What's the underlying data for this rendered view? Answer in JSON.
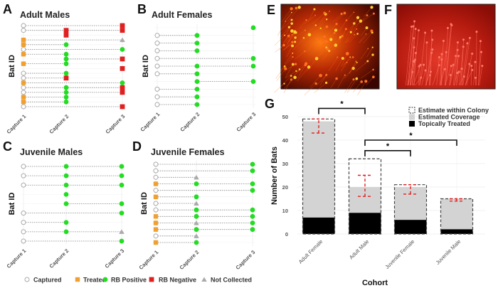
{
  "figure": {
    "legend": {
      "items": [
        {
          "code": "C",
          "label": "Captured",
          "icon": "open-circle-icon",
          "color": "#aaaaaa"
        },
        {
          "code": "T",
          "label": "Treated",
          "icon": "square-icon",
          "color": "#f0a030"
        },
        {
          "code": "P",
          "label": "RB Positive",
          "icon": "filled-circle-icon",
          "color": "#22dd22"
        },
        {
          "code": "N",
          "label": "RB Negative",
          "icon": "square-icon",
          "color": "#e02020"
        },
        {
          "code": "X",
          "label": "Not Collected",
          "icon": "triangle-icon",
          "color": "#aaaaaa"
        }
      ]
    },
    "capture_labels": [
      "Capture 1",
      "Capture 2",
      "Capture 3"
    ],
    "y_label": "Bat ID",
    "panels": [
      {
        "letter": "A",
        "title": "Adult Males",
        "rows": [
          [
            "C",
            "",
            "N"
          ],
          [
            "C",
            "N",
            "N"
          ],
          [
            "",
            "N",
            ""
          ],
          [
            "T",
            "",
            "X"
          ],
          [
            "T",
            "P",
            ""
          ],
          [
            "C",
            "",
            "P"
          ],
          [
            "T",
            "P",
            ""
          ],
          [
            "",
            "P",
            "N"
          ],
          [
            "T",
            "P",
            ""
          ],
          [
            "",
            "",
            "N"
          ],
          [
            "C",
            "P",
            ""
          ],
          [
            "C",
            "N",
            ""
          ],
          [
            "T",
            "",
            "P"
          ],
          [
            "C",
            "P",
            "N"
          ],
          [
            "C",
            "P",
            "N"
          ],
          [
            "T",
            "P",
            ""
          ],
          [
            "T",
            "P",
            ""
          ],
          [
            "C",
            "",
            "N"
          ]
        ]
      },
      {
        "letter": "B",
        "title": "Adult Females",
        "rows": [
          [
            "",
            "",
            "P"
          ],
          [
            "C",
            "P",
            ""
          ],
          [
            "C",
            "P",
            ""
          ],
          [
            "C",
            "P",
            ""
          ],
          [
            "C",
            "",
            "P"
          ],
          [
            "C",
            "P",
            "P"
          ],
          [
            "C",
            "P",
            ""
          ],
          [
            "",
            "P",
            "P"
          ],
          [
            "C",
            "P",
            ""
          ],
          [
            "C",
            "P",
            ""
          ],
          [
            "C",
            "P",
            ""
          ]
        ]
      },
      {
        "letter": "C",
        "title": "Juvenile Males",
        "rows": [
          [
            "C",
            "P",
            "P"
          ],
          [
            "C",
            "P",
            "P"
          ],
          [
            "C",
            "P",
            "P"
          ],
          [
            "",
            "P",
            ""
          ],
          [
            "",
            "P",
            "P"
          ],
          [
            "C",
            "",
            "P"
          ],
          [
            "C",
            "P",
            ""
          ],
          [
            "C",
            "P",
            "X"
          ],
          [
            "C",
            "",
            "P"
          ]
        ]
      },
      {
        "letter": "D",
        "title": "Juvenile Females",
        "rows": [
          [
            "C",
            "",
            "P"
          ],
          [
            "C",
            "",
            "P"
          ],
          [
            "C",
            "X",
            ""
          ],
          [
            "T",
            "P",
            "P"
          ],
          [
            "C",
            "",
            "P"
          ],
          [
            "T",
            "P",
            ""
          ],
          [
            "C",
            "X",
            ""
          ],
          [
            "C",
            "P",
            "P"
          ],
          [
            "T",
            "P",
            "P"
          ],
          [
            "T",
            "X",
            "P"
          ],
          [
            "T",
            "P",
            "P"
          ],
          [
            "C",
            "X",
            ""
          ],
          [
            "T",
            "P",
            ""
          ]
        ]
      }
    ],
    "images": [
      {
        "letter": "E",
        "description_icon": "fluorescence-micrograph-icon"
      },
      {
        "letter": "F",
        "description_icon": "fluorescence-micrograph-icon"
      }
    ]
  },
  "chart_data": {
    "type": "bar",
    "panel_letter": "G",
    "categories": [
      "Adult Female",
      "Adult Male",
      "Juvenile Female",
      "Juvenile Male"
    ],
    "series": [
      {
        "name": "Estimate within Colony",
        "values": [
          49,
          32,
          21,
          15
        ],
        "style": "dashed-outline"
      },
      {
        "name": "Estimated Coverage",
        "values": [
          48,
          20,
          20,
          15
        ],
        "color": "#d3d3d3"
      },
      {
        "name": "Topically Treated",
        "values": [
          7,
          9,
          6,
          2
        ],
        "color": "#000000"
      }
    ],
    "error_bars": [
      [
        43,
        49
      ],
      [
        16,
        25
      ],
      [
        17,
        21
      ],
      [
        14,
        15
      ]
    ],
    "error_bar_color": "#e02020",
    "significance": [
      {
        "from": "Adult Female",
        "to": "Adult Male",
        "label": "*",
        "y": 53.5
      },
      {
        "from": "Adult Male",
        "to": "Juvenile Male",
        "label": "*",
        "y": 40
      },
      {
        "from": "Adult Male",
        "to": "Juvenile Female",
        "label": "*",
        "y": 35.5
      }
    ],
    "xlabel": "Cohort",
    "ylabel": "Number of Bats",
    "ylim": [
      0,
      50
    ],
    "yticks": [
      "0",
      "10",
      "20",
      "30",
      "40",
      "50"
    ],
    "grid": true,
    "legend_placement": "top-right"
  }
}
